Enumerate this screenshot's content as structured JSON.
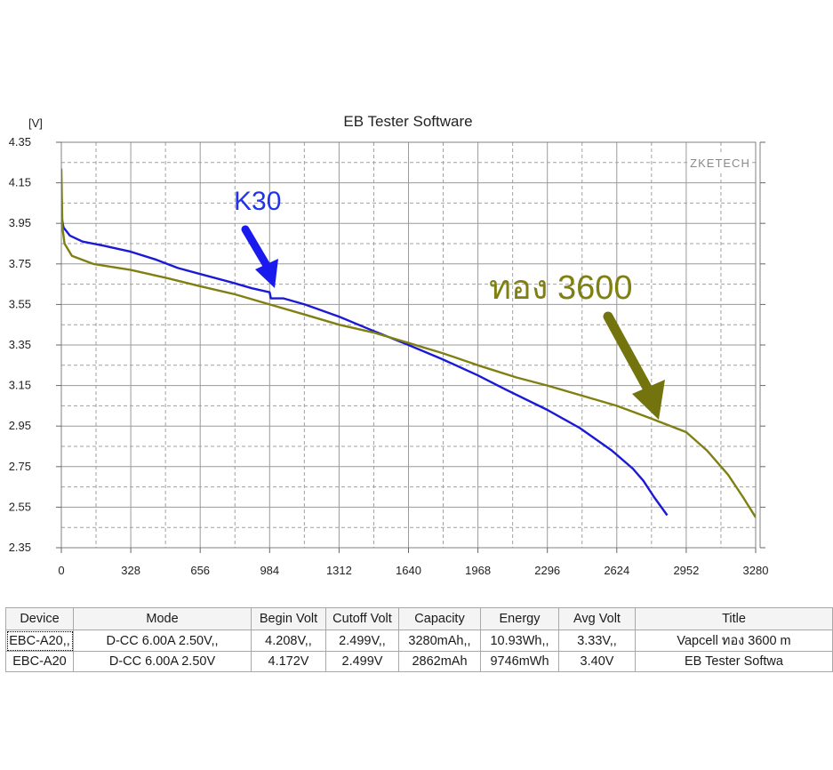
{
  "chart_data": {
    "type": "line",
    "title": "EB Tester Software",
    "watermark": "ZKETECH",
    "ylabel": "[V]",
    "xlabel": "",
    "xlim": [
      0,
      3280
    ],
    "ylim": [
      2.35,
      4.35
    ],
    "x_ticks": [
      0,
      328,
      656,
      984,
      1312,
      1640,
      1968,
      2296,
      2624,
      2952,
      3280
    ],
    "y_ticks": [
      4.35,
      4.15,
      3.95,
      3.75,
      3.55,
      3.35,
      3.15,
      2.95,
      2.75,
      2.55,
      2.35
    ],
    "grid": true,
    "series": [
      {
        "name": "K30",
        "color": "#1a1ad6",
        "x": [
          0,
          10,
          40,
          100,
          200,
          328,
          450,
          550,
          656,
          800,
          900,
          984,
          990,
          1050,
          1150,
          1312,
          1450,
          1640,
          1800,
          1968,
          2100,
          2296,
          2450,
          2600,
          2700,
          2750,
          2800,
          2862
        ],
        "y": [
          3.99,
          3.93,
          3.89,
          3.86,
          3.84,
          3.81,
          3.77,
          3.73,
          3.7,
          3.66,
          3.63,
          3.61,
          3.58,
          3.58,
          3.55,
          3.49,
          3.43,
          3.35,
          3.28,
          3.2,
          3.13,
          3.03,
          2.94,
          2.83,
          2.74,
          2.68,
          2.6,
          2.51
        ]
      },
      {
        "name": "ทอง 3600",
        "color": "#7f7f12",
        "x": [
          0,
          5,
          15,
          50,
          150,
          328,
          500,
          656,
          820,
          984,
          1150,
          1312,
          1480,
          1640,
          1800,
          1968,
          2150,
          2296,
          2460,
          2624,
          2780,
          2952,
          3050,
          3150,
          3220,
          3280
        ],
        "y": [
          4.22,
          3.93,
          3.85,
          3.79,
          3.75,
          3.72,
          3.68,
          3.64,
          3.6,
          3.55,
          3.5,
          3.45,
          3.41,
          3.36,
          3.31,
          3.25,
          3.19,
          3.15,
          3.1,
          3.05,
          2.99,
          2.92,
          2.83,
          2.71,
          2.6,
          2.5
        ]
      }
    ],
    "annotations": [
      {
        "text": "K30",
        "color": "#2233ee"
      },
      {
        "text": "ทอง 3600",
        "color": "#7f7f12"
      }
    ]
  },
  "table": {
    "headers": [
      "Device",
      "Mode",
      "Begin Volt",
      "Cutoff Volt",
      "Capacity",
      "Energy",
      "Avg Volt",
      "Title"
    ],
    "rows": [
      [
        "EBC-A20,,",
        "D-CC  6.00A  2.50V,,",
        "4.208V,,",
        "2.499V,,",
        "3280mAh,,",
        "10.93Wh,,",
        "3.33V,,",
        "Vapcell ทอง 3600 m"
      ],
      [
        "EBC-A20",
        "D-CC  6.00A  2.50V",
        "4.172V",
        "2.499V",
        "2862mAh",
        "9746mWh",
        "3.40V",
        "EB Tester Softwa"
      ]
    ]
  }
}
